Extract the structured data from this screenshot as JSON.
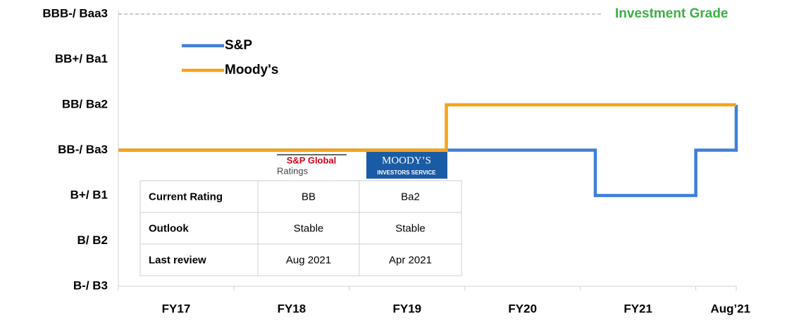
{
  "chart_data": {
    "type": "line",
    "ylim": [
      0,
      6
    ],
    "yticks": [
      {
        "value": 0,
        "label": "B-/ B3"
      },
      {
        "value": 1,
        "label": "B/ B2"
      },
      {
        "value": 2,
        "label": "B+/ B1"
      },
      {
        "value": 3,
        "label": "BB-/ Ba3"
      },
      {
        "value": 4,
        "label": "BB/ Ba2"
      },
      {
        "value": 5,
        "label": "BB+/ Ba1"
      },
      {
        "value": 6,
        "label": "BBB-/ Baa3"
      }
    ],
    "xlim": [
      0,
      5.35
    ],
    "xticks": [
      {
        "value": 0.5,
        "label": "FY17"
      },
      {
        "value": 1.5,
        "label": "FY18"
      },
      {
        "value": 2.5,
        "label": "FY19"
      },
      {
        "value": 3.5,
        "label": "FY20"
      },
      {
        "value": 4.5,
        "label": "FY21"
      },
      {
        "value": 5.3,
        "label": "Aug’21"
      }
    ],
    "xminor_ticks": [
      0,
      1,
      2,
      3,
      4,
      5,
      5.35
    ],
    "legend": "top-left",
    "series": [
      {
        "name": "S&P",
        "color": "#3f7fd9",
        "x": [
          0,
          4.13,
          4.13,
          5.0,
          5.0,
          5.35,
          5.35
        ],
        "values": [
          3,
          3,
          2,
          2,
          3,
          3,
          4
        ]
      },
      {
        "name": "Moody's",
        "color": "#f6a316",
        "x": [
          0,
          2.84,
          2.84,
          5.35
        ],
        "values": [
          3,
          3,
          4,
          4
        ]
      }
    ],
    "reference_line": {
      "value": 6,
      "x_end": 4.19,
      "color": "#aaaaaa",
      "label": "Investment Grade",
      "label_color": "#3cb043"
    }
  },
  "logos": {
    "sp": [
      "S&P Global",
      "Ratings"
    ],
    "moodys": [
      "MOODY’S",
      "INVESTORS SERVICE"
    ]
  },
  "table": {
    "rows": [
      [
        "Current Rating",
        "BB",
        "Ba2"
      ],
      [
        "Outlook",
        "Stable",
        "Stable"
      ],
      [
        "Last review",
        "Aug 2021",
        "Apr 2021"
      ]
    ]
  }
}
